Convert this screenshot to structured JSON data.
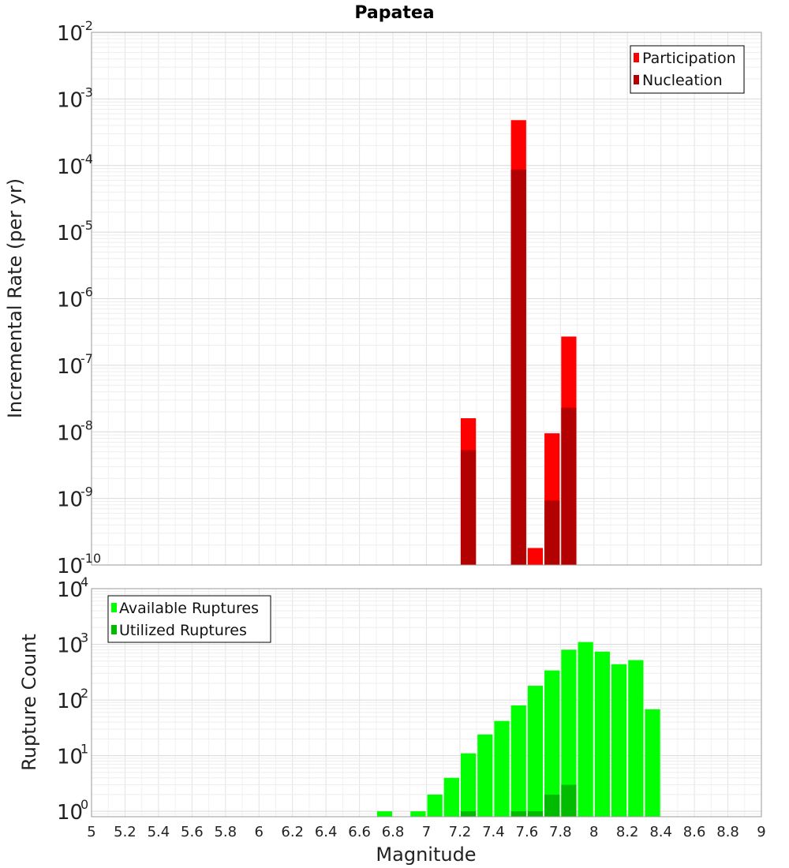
{
  "chart_data": [
    {
      "type": "bar",
      "title": "Papatea",
      "ylabel": "Incremental Rate (per yr)",
      "xlabel": "",
      "yscale": "log",
      "ylim": [
        1e-10,
        0.01
      ],
      "xlim": [
        5,
        9
      ],
      "ytick_labels": [
        {
          "base": "10",
          "exp": "-2"
        },
        {
          "base": "10",
          "exp": "-3"
        },
        {
          "base": "10",
          "exp": "-4"
        },
        {
          "base": "10",
          "exp": "-5"
        },
        {
          "base": "10",
          "exp": "-6"
        },
        {
          "base": "10",
          "exp": "-7"
        },
        {
          "base": "10",
          "exp": "-8"
        },
        {
          "base": "10",
          "exp": "-9"
        },
        {
          "base": "10",
          "exp": "-10"
        }
      ],
      "legend_position": "top-right",
      "grid": true,
      "series": [
        {
          "name": "Participation",
          "color": "#ff0000",
          "x": [
            7.25,
            7.55,
            7.65,
            7.75,
            7.85
          ],
          "values": [
            1.6e-08,
            0.00048,
            1.8e-10,
            9.5e-09,
            2.7e-07
          ]
        },
        {
          "name": "Nucleation",
          "color": "#b30000",
          "x": [
            7.25,
            7.55,
            7.75,
            7.85
          ],
          "values": [
            5.3e-09,
            8.7e-05,
            9.3e-10,
            2.3e-08
          ]
        }
      ]
    },
    {
      "type": "bar",
      "title": "",
      "ylabel": "Rupture Count",
      "xlabel": "Magnitude",
      "yscale": "log",
      "ylim": [
        0.8,
        10000
      ],
      "xlim": [
        5,
        9
      ],
      "ytick_labels": [
        {
          "base": "10",
          "exp": "4"
        },
        {
          "base": "10",
          "exp": "3"
        },
        {
          "base": "10",
          "exp": "2"
        },
        {
          "base": "10",
          "exp": "1"
        },
        {
          "base": "10",
          "exp": "0"
        }
      ],
      "xtick_labels": [
        "5",
        "5.2",
        "5.4",
        "5.6",
        "5.8",
        "6",
        "6.2",
        "6.4",
        "6.6",
        "6.8",
        "7",
        "7.2",
        "7.4",
        "7.6",
        "7.8",
        "8",
        "8.2",
        "8.4",
        "8.6",
        "8.8",
        "9"
      ],
      "legend_position": "top-left",
      "grid": true,
      "series": [
        {
          "name": "Available Ruptures",
          "color": "#00ff00",
          "x": [
            6.75,
            6.95,
            7.05,
            7.15,
            7.25,
            7.35,
            7.45,
            7.55,
            7.65,
            7.75,
            7.85,
            7.95,
            8.05,
            8.15,
            8.25,
            8.35
          ],
          "values": [
            1,
            1,
            2,
            4,
            11,
            24,
            42,
            80,
            180,
            340,
            800,
            1100,
            740,
            440,
            520,
            68
          ]
        },
        {
          "name": "Utilized Ruptures",
          "color": "#00bb00",
          "x": [
            7.25,
            7.55,
            7.65,
            7.75,
            7.85
          ],
          "values": [
            1,
            1,
            1,
            2,
            3
          ]
        }
      ]
    }
  ]
}
